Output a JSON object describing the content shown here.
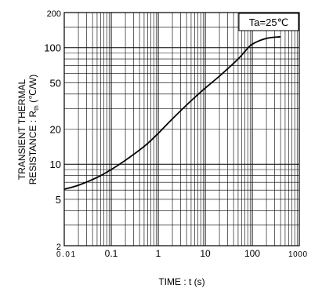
{
  "chart_data": {
    "type": "line",
    "title": "",
    "xlabel": "TIME : t (s)",
    "ylabel_line1": "TRANSIENT  THERMAL",
    "ylabel_line2_pre": "RESISTANCE : R",
    "ylabel_sub": "th",
    "ylabel_line2_post": " (℃/W)",
    "annotation": "Ta=25℃",
    "x_scale": "log",
    "y_scale": "log",
    "xlim": [
      0.01,
      1000
    ],
    "ylim": [
      2,
      200
    ],
    "x_ticks": [
      0.01,
      0.1,
      1,
      10,
      100,
      1000
    ],
    "x_tick_labels": [
      "0.01",
      "0.1",
      "1",
      "10",
      "100",
      "1000"
    ],
    "y_ticks": [
      2,
      5,
      10,
      20,
      50,
      100,
      200
    ],
    "y_tick_labels": [
      "2",
      "5",
      "10",
      "20",
      "50",
      "100",
      "200"
    ],
    "grid": true,
    "series": [
      {
        "x": [
          0.01,
          0.02,
          0.05,
          0.1,
          0.2,
          0.5,
          1,
          2,
          5,
          10,
          20,
          50,
          70,
          100,
          200,
          400
        ],
        "y": [
          6.1,
          6.6,
          7.7,
          9.0,
          10.8,
          14.2,
          18.4,
          24.5,
          35,
          45,
          57,
          80,
          93,
          107,
          120,
          124
        ]
      }
    ],
    "colors": {
      "line": "#000000",
      "grid": "#000000"
    }
  }
}
